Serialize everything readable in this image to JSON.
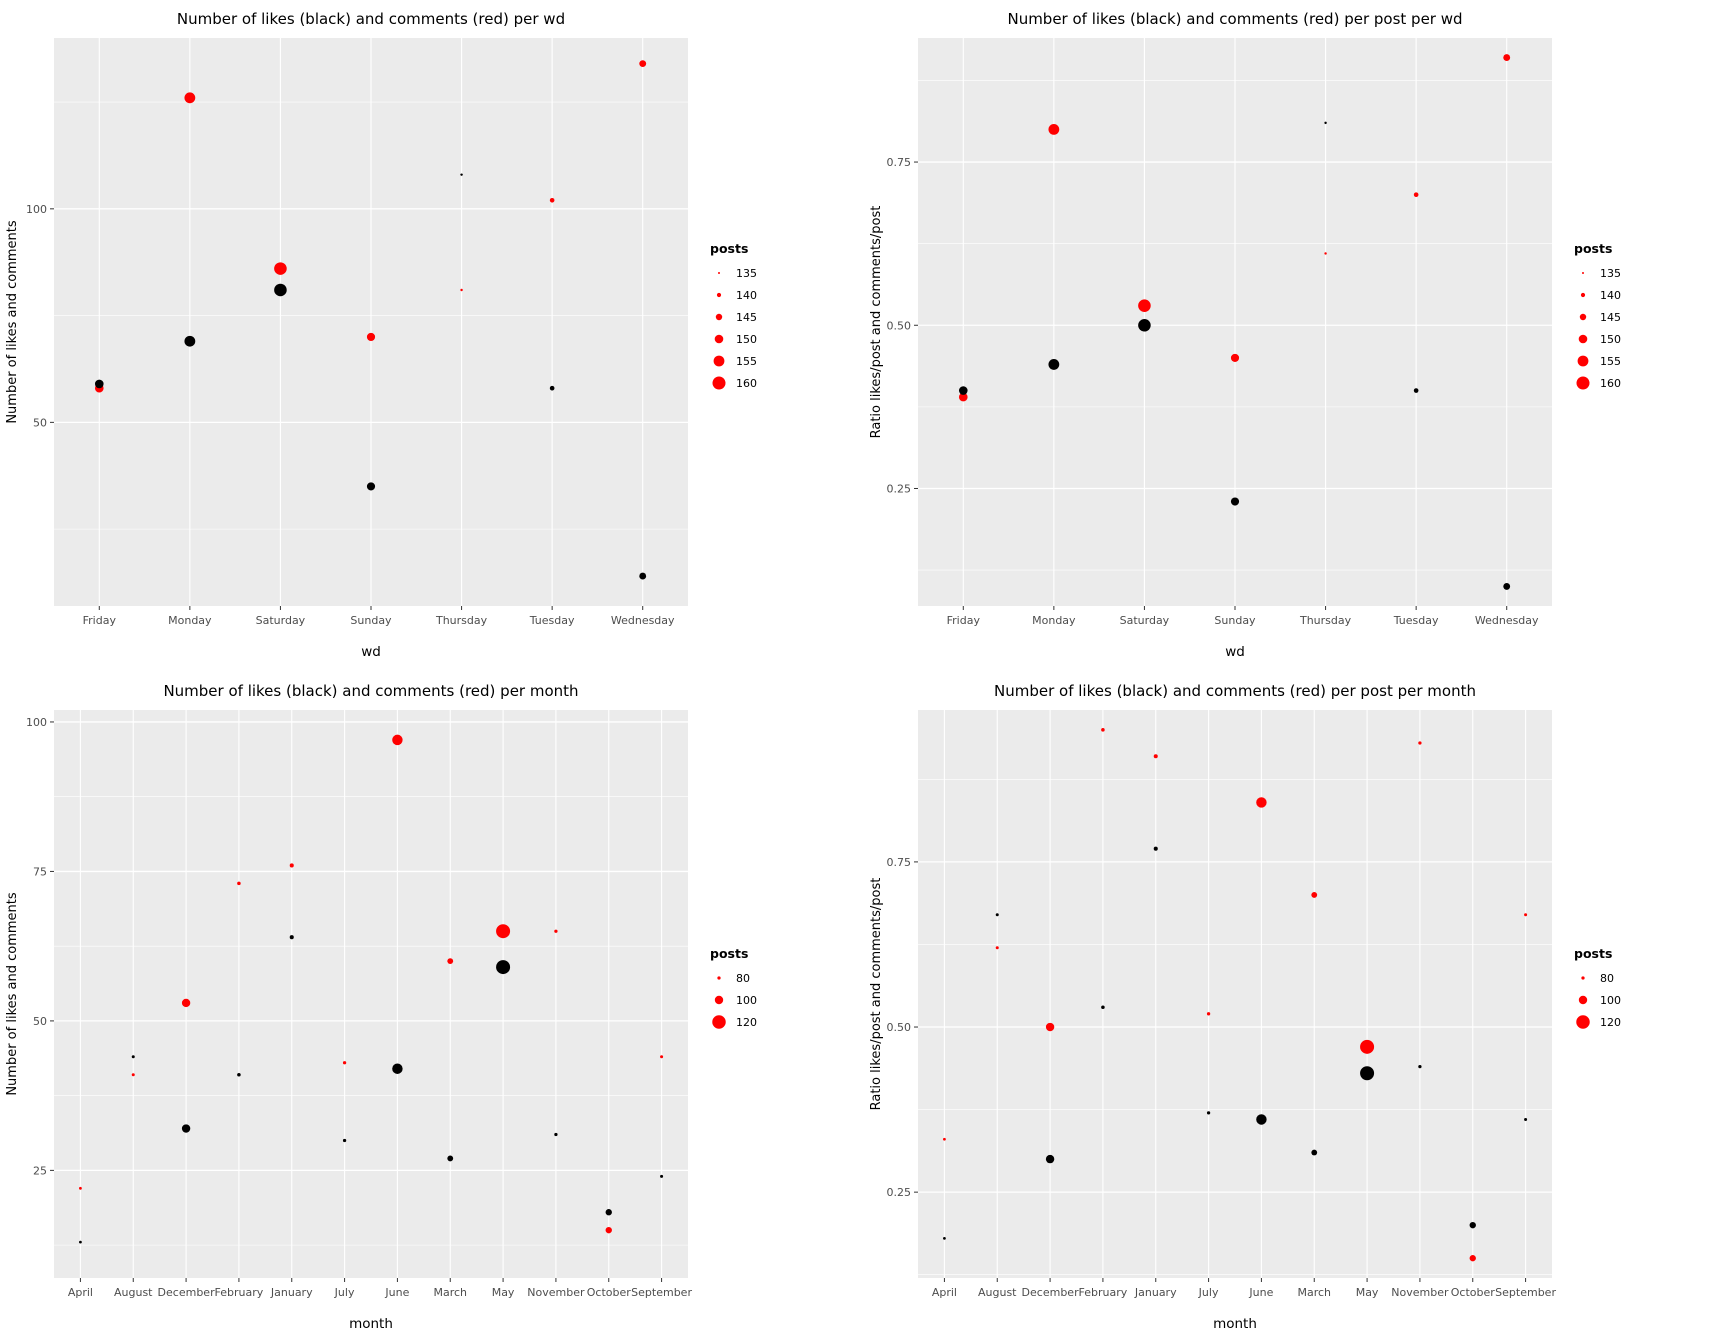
{
  "colors": {
    "likes": "#000000",
    "comments": "#FF0000",
    "panel_background": "#EBEBEB",
    "gridline": "#FFFFFF",
    "axis_text": "#4D4D4D",
    "tick_mark": "#333333",
    "title_text": "#000000",
    "page_background": "#FFFFFF"
  },
  "chart_data": [
    {
      "type": "scatter",
      "title": "Number of likes (black) and comments (red) per wd",
      "xlabel": "wd",
      "ylabel": "Number of likes and comments",
      "categories": [
        "Friday",
        "Monday",
        "Saturday",
        "Sunday",
        "Thursday",
        "Tuesday",
        "Wednesday"
      ],
      "yticks": [
        50,
        100
      ],
      "ytick_labels": [
        "50",
        "100"
      ],
      "ylim": [
        7,
        140
      ],
      "grid": true,
      "legend": {
        "title": "posts",
        "position": "right",
        "values": [
          135,
          140,
          145,
          150,
          155,
          160
        ]
      },
      "size_domain": [
        135,
        160
      ],
      "size_range": [
        1,
        6.5
      ],
      "posts_per_category": [
        150,
        155,
        159,
        149,
        136,
        141,
        146
      ],
      "series": [
        {
          "name": "comments",
          "color": "#FF0000",
          "values": [
            58,
            126,
            86,
            70,
            81,
            102,
            134
          ]
        },
        {
          "name": "likes",
          "color": "#000000",
          "values": [
            59,
            69,
            81,
            35,
            108,
            58,
            14
          ]
        }
      ]
    },
    {
      "type": "scatter",
      "title": "Number of likes (black) and comments (red) per post per wd",
      "xlabel": "wd",
      "ylabel": "Ratio likes/post and comments/post",
      "categories": [
        "Friday",
        "Monday",
        "Saturday",
        "Sunday",
        "Thursday",
        "Tuesday",
        "Wednesday"
      ],
      "yticks": [
        0.25,
        0.5,
        0.75
      ],
      "ytick_labels": [
        "0.25",
        "0.50",
        "0.75"
      ],
      "ylim": [
        0.07,
        0.94
      ],
      "grid": true,
      "legend": {
        "title": "posts",
        "position": "right",
        "values": [
          135,
          140,
          145,
          150,
          155,
          160
        ]
      },
      "size_domain": [
        135,
        160
      ],
      "size_range": [
        1,
        6.5
      ],
      "posts_per_category": [
        150,
        155,
        159,
        149,
        136,
        141,
        146
      ],
      "series": [
        {
          "name": "comments",
          "color": "#FF0000",
          "values": [
            0.39,
            0.8,
            0.53,
            0.45,
            0.61,
            0.7,
            0.91
          ]
        },
        {
          "name": "likes",
          "color": "#000000",
          "values": [
            0.4,
            0.44,
            0.5,
            0.23,
            0.81,
            0.4,
            0.1
          ]
        }
      ]
    },
    {
      "type": "scatter",
      "title": "Number of likes (black) and comments (red) per month",
      "xlabel": "month",
      "ylabel": "Number of likes and comments",
      "categories": [
        "April",
        "August",
        "December",
        "February",
        "January",
        "July",
        "June",
        "March",
        "May",
        "November",
        "October",
        "September"
      ],
      "yticks": [
        25,
        50,
        75,
        100
      ],
      "ytick_labels": [
        "25",
        "50",
        "75",
        "100"
      ],
      "ylim": [
        7,
        102
      ],
      "grid": true,
      "legend": {
        "title": "posts",
        "position": "right",
        "values": [
          80,
          100,
          120
        ]
      },
      "size_domain": [
        75,
        122
      ],
      "size_range": [
        1,
        7
      ],
      "posts_per_category": [
        78,
        79,
        100,
        81,
        83,
        80,
        108,
        90,
        122,
        80,
        92,
        79
      ],
      "series": [
        {
          "name": "comments",
          "color": "#FF0000",
          "values": [
            22,
            41,
            53,
            73,
            76,
            43,
            97,
            60,
            65,
            65,
            15,
            44
          ]
        },
        {
          "name": "likes",
          "color": "#000000",
          "values": [
            13,
            44,
            32,
            41,
            64,
            30,
            42,
            27,
            59,
            31,
            18,
            24
          ]
        }
      ]
    },
    {
      "type": "scatter",
      "title": "Number of likes (black) and comments (red) per post per month",
      "xlabel": "month",
      "ylabel": "Ratio likes/post and comments/post",
      "categories": [
        "April",
        "August",
        "December",
        "February",
        "January",
        "July",
        "June",
        "March",
        "May",
        "November",
        "October",
        "September"
      ],
      "yticks": [
        0.25,
        0.5,
        0.75
      ],
      "ytick_labels": [
        "0.25",
        "0.50",
        "0.75"
      ],
      "ylim": [
        0.12,
        0.98
      ],
      "grid": true,
      "legend": {
        "title": "posts",
        "position": "right",
        "values": [
          80,
          100,
          120
        ]
      },
      "size_domain": [
        75,
        122
      ],
      "size_range": [
        1,
        7
      ],
      "posts_per_category": [
        78,
        79,
        100,
        81,
        83,
        80,
        108,
        90,
        122,
        80,
        92,
        79
      ],
      "series": [
        {
          "name": "comments",
          "color": "#FF0000",
          "values": [
            0.33,
            0.62,
            0.5,
            0.95,
            0.91,
            0.52,
            0.84,
            0.7,
            0.47,
            0.93,
            0.15,
            0.67
          ]
        },
        {
          "name": "likes",
          "color": "#000000",
          "values": [
            0.18,
            0.67,
            0.3,
            0.53,
            0.77,
            0.37,
            0.36,
            0.31,
            0.43,
            0.44,
            0.2,
            0.36
          ]
        }
      ]
    }
  ]
}
